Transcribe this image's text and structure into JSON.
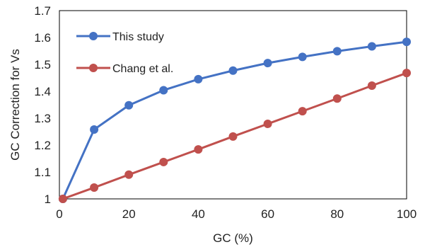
{
  "chart_data": {
    "type": "line",
    "title": "",
    "xlabel": "GC (%)",
    "ylabel": "GC Correction for Vs",
    "xlim": [
      0,
      100
    ],
    "ylim": [
      1,
      1.7
    ],
    "xticks": [
      0,
      20,
      40,
      60,
      80,
      100
    ],
    "yticks": [
      1,
      1.1,
      1.2,
      1.3,
      1.4,
      1.5,
      1.6,
      1.7
    ],
    "ytick_labels": [
      "1",
      "1.1",
      "1.2",
      "1.3",
      "1.4",
      "1.5",
      "1.6",
      "1.7"
    ],
    "grid": false,
    "legend_position": "top-left",
    "series": [
      {
        "name": "This study",
        "color": "#4472C4",
        "x": [
          1,
          10,
          20,
          30,
          40,
          50,
          60,
          70,
          80,
          90,
          100
        ],
        "y": [
          1.0,
          1.258,
          1.348,
          1.404,
          1.445,
          1.477,
          1.505,
          1.528,
          1.549,
          1.567,
          1.584
        ]
      },
      {
        "name": "Chang et al.",
        "color": "#C0504D",
        "x": [
          1,
          10,
          20,
          30,
          40,
          50,
          60,
          70,
          80,
          90,
          100
        ],
        "y": [
          1.0,
          1.042,
          1.09,
          1.137,
          1.184,
          1.232,
          1.279,
          1.326,
          1.373,
          1.421,
          1.468
        ]
      }
    ]
  }
}
